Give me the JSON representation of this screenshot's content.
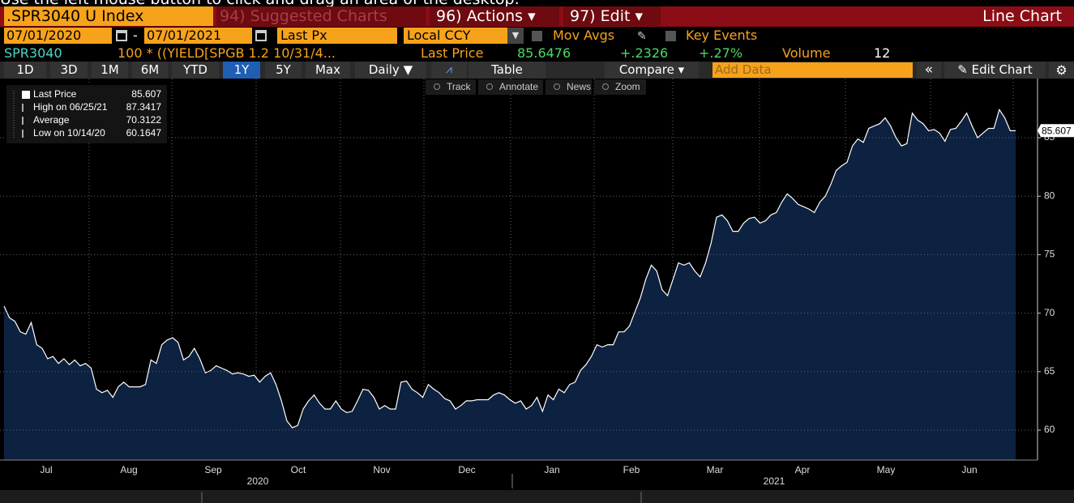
{
  "top_hint": "Use the left mouse button to click and drag an area of the desktop.",
  "toolbar": {
    "security": ".SPR3040 U Index",
    "suggested": "94) Suggested Charts",
    "actions": "96) Actions",
    "edit": "97) Edit",
    "chart_type": "Line Chart"
  },
  "settings": {
    "start_date": "07/01/2020",
    "separator": "-",
    "end_date": "07/01/2021",
    "field": "Last Px",
    "currency": "Local CCY",
    "mov_avgs": "Mov Avgs",
    "key_events": "Key Events"
  },
  "quote": {
    "ticker": "SPR3040",
    "formula": "100 * ((YIELD[SPGB 1.2 10/31/4...",
    "last_price_label": "Last Price",
    "last_price": 85.6476,
    "change": "+.2326",
    "change_pct": "+.27%",
    "volume_label": "Volume",
    "volume": 12
  },
  "range_buttons": [
    "1D",
    "3D",
    "1M",
    "6M",
    "YTD",
    "1Y",
    "5Y",
    "Max"
  ],
  "controls": {
    "periodicity": "Daily",
    "table": "Table",
    "compare": "Compare",
    "add_data": "Add Data",
    "edit_chart": "Edit Chart"
  },
  "tools": [
    "Track",
    "Annotate",
    "News",
    "Zoom"
  ],
  "legend": {
    "rows": [
      {
        "label": "Last Price",
        "value": 85.607
      },
      {
        "label": "High on 06/25/21",
        "value": 87.3417
      },
      {
        "label": "Average",
        "value": 70.3122
      },
      {
        "label": "Low on 10/14/20",
        "value": 60.1647
      }
    ]
  },
  "chart_data": {
    "type": "area",
    "color": "#ffffff",
    "fill": "#0d2140",
    "values": [
      70.6,
      69.6,
      69.3,
      68.4,
      68.2,
      69.2,
      67.3,
      67.0,
      66.1,
      66.3,
      65.7,
      66.1,
      65.6,
      66.0,
      65.5,
      65.7,
      65.3,
      63.5,
      63.2,
      63.4,
      62.8,
      63.7,
      64.1,
      63.7,
      63.7,
      63.7,
      63.9,
      66.0,
      65.7,
      67.3,
      67.7,
      67.9,
      67.5,
      66.0,
      66.3,
      67.0,
      66.1,
      64.9,
      65.1,
      65.5,
      65.3,
      65.1,
      64.8,
      64.9,
      64.8,
      64.6,
      64.7,
      64.1,
      64.6,
      64.9,
      63.9,
      62.5,
      60.8,
      60.2,
      60.4,
      61.8,
      62.5,
      63.0,
      62.3,
      61.8,
      61.8,
      62.5,
      61.8,
      61.5,
      61.6,
      62.5,
      63.5,
      63.4,
      62.8,
      61.8,
      62.1,
      61.8,
      61.8,
      64.1,
      64.2,
      63.5,
      63.2,
      62.8,
      63.9,
      63.5,
      63.2,
      62.7,
      62.5,
      61.8,
      62.1,
      62.5,
      62.5,
      62.6,
      62.6,
      62.6,
      63.0,
      63.2,
      63.0,
      62.6,
      62.3,
      62.5,
      61.8,
      62.1,
      62.8,
      61.6,
      63.0,
      62.6,
      63.5,
      63.2,
      63.9,
      64.1,
      65.1,
      65.6,
      66.3,
      67.3,
      67.1,
      67.3,
      67.3,
      68.4,
      68.4,
      68.9,
      70.1,
      71.3,
      72.9,
      74.1,
      73.6,
      72.0,
      71.5,
      72.9,
      74.3,
      74.1,
      74.3,
      73.6,
      73.1,
      74.3,
      76.0,
      78.2,
      78.4,
      77.9,
      77.0,
      77.0,
      77.7,
      78.1,
      78.2,
      77.7,
      77.9,
      78.4,
      78.6,
      79.5,
      80.2,
      79.8,
      79.3,
      79.1,
      78.9,
      78.6,
      79.5,
      80.0,
      81.0,
      82.2,
      82.6,
      82.9,
      84.3,
      84.9,
      84.6,
      85.8,
      86.0,
      86.2,
      86.7,
      86.0,
      85.0,
      84.3,
      84.5,
      87.1,
      86.5,
      86.2,
      85.6,
      85.7,
      85.4,
      84.7,
      85.7,
      85.8,
      86.4,
      87.1,
      86.0,
      85.0,
      85.4,
      85.8,
      85.8,
      87.4,
      86.7,
      85.6,
      85.6
    ],
    "ylim": [
      57.44,
      89.85
    ],
    "yticks": [
      60,
      65,
      70,
      75,
      80,
      85
    ],
    "grid": true,
    "last_value": 85.607,
    "months": [
      "Jul",
      "Aug",
      "Sep",
      "Oct",
      "Nov",
      "Dec",
      "Jan",
      "Feb",
      "Mar",
      "Apr",
      "May",
      "Jun"
    ],
    "years": [
      "2020",
      "2021"
    ]
  }
}
